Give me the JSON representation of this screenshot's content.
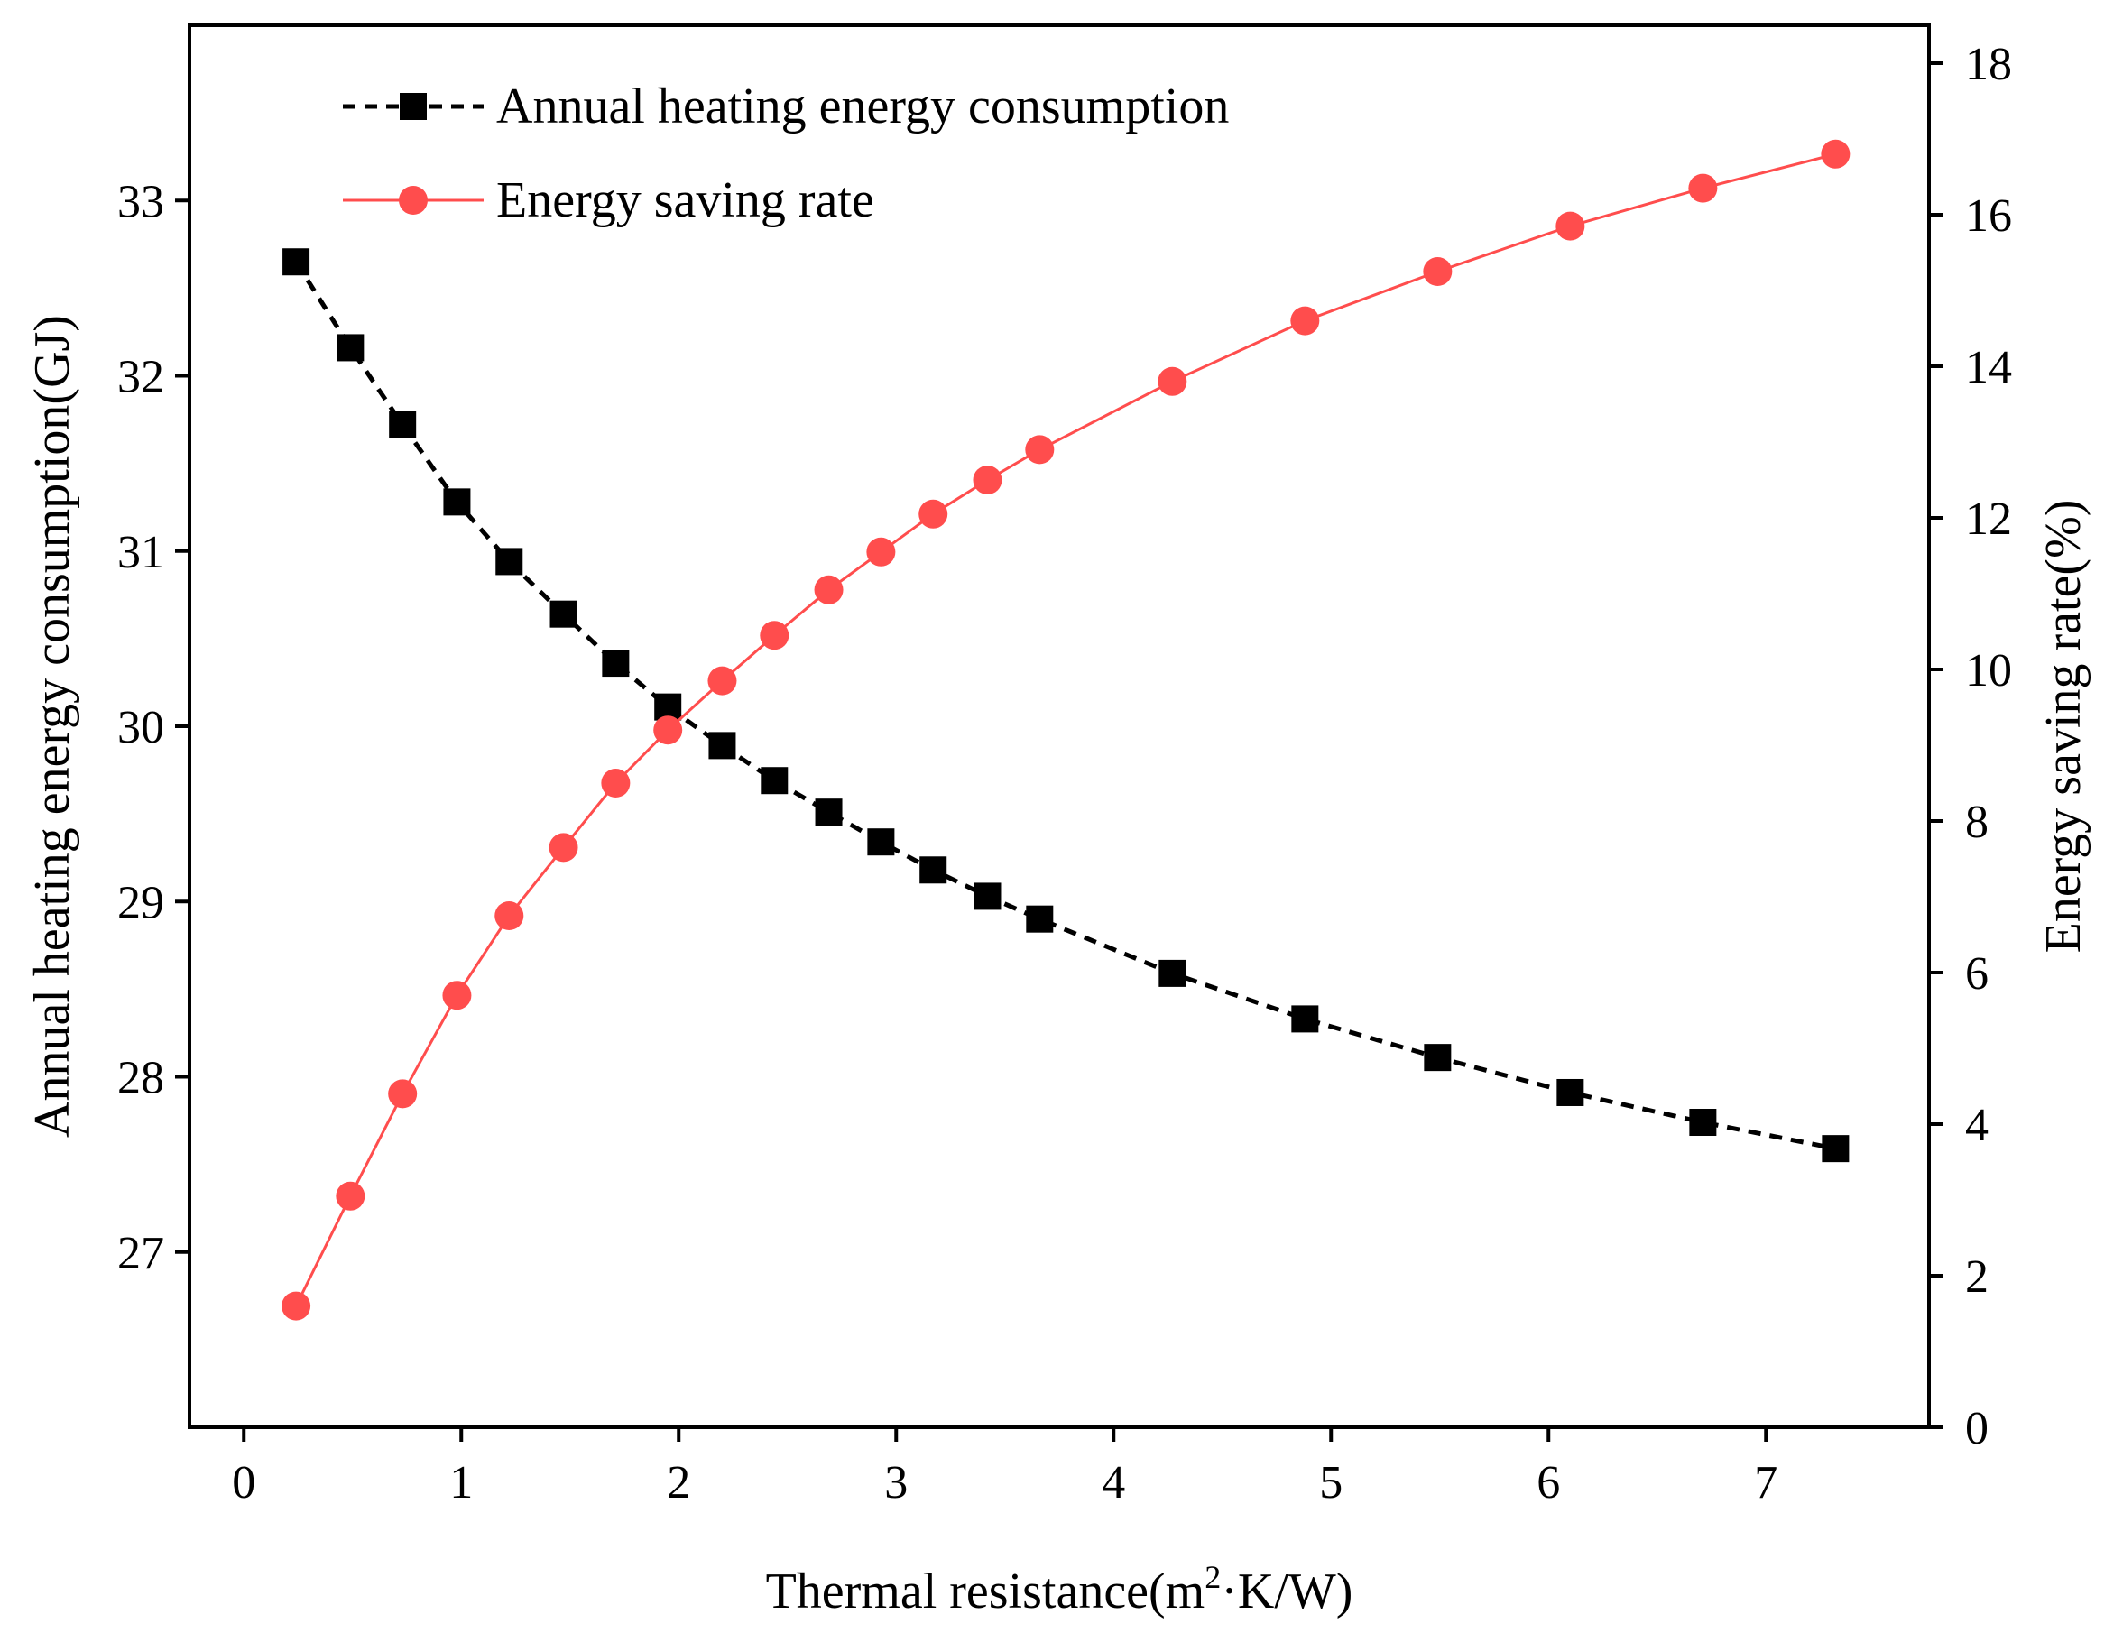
{
  "chart_data": {
    "type": "line",
    "xlabel": "Thermal resistance(m²·K/W)",
    "xlabel_parts": {
      "pre": "Thermal resistance(m",
      "sup": "2",
      "post": "·K/W)"
    },
    "ylabel_left": "Annual heating energy consumption(GJ)",
    "ylabel_right": "Energy saving rate(%)",
    "xlim": [
      -0.25,
      7.75
    ],
    "ylim_left": [
      26.0,
      34.0
    ],
    "ylim_right": [
      0,
      18.5
    ],
    "x_ticks": [
      0,
      1,
      2,
      3,
      4,
      5,
      6,
      7
    ],
    "x_tick_labels": [
      "0",
      "1",
      "2",
      "3",
      "4",
      "5",
      "6",
      "7"
    ],
    "y_left_ticks": [
      27,
      28,
      29,
      30,
      31,
      32,
      33
    ],
    "y_left_tick_labels": [
      "27",
      "28",
      "29",
      "30",
      "31",
      "32",
      "33"
    ],
    "y_right_ticks": [
      0,
      2,
      4,
      6,
      8,
      10,
      12,
      14,
      16,
      18
    ],
    "y_right_tick_labels": [
      "0",
      "2",
      "4",
      "6",
      "8",
      "10",
      "12",
      "14",
      "16",
      "18"
    ],
    "legend_position": "top-left",
    "series": [
      {
        "name": "Annual heating energy consumption",
        "axis": "left",
        "color": "#000000",
        "line_style": "dashed",
        "marker": "square",
        "x": [
          0.24,
          0.49,
          0.73,
          0.98,
          1.22,
          1.47,
          1.71,
          1.95,
          2.2,
          2.44,
          2.69,
          2.93,
          3.17,
          3.42,
          3.66,
          4.27,
          4.88,
          5.49,
          6.1,
          6.71,
          7.32
        ],
        "values": [
          32.65,
          32.16,
          31.72,
          31.28,
          30.94,
          30.64,
          30.36,
          30.11,
          29.89,
          29.69,
          29.51,
          29.34,
          29.18,
          29.03,
          28.9,
          28.59,
          28.33,
          28.11,
          27.91,
          27.74,
          27.59
        ]
      },
      {
        "name": "Energy saving rate",
        "axis": "right",
        "color": "#ff4d4d",
        "line_style": "solid",
        "marker": "circle",
        "x": [
          0.24,
          0.49,
          0.73,
          0.98,
          1.22,
          1.47,
          1.71,
          1.95,
          2.2,
          2.44,
          2.69,
          2.93,
          3.17,
          3.42,
          3.66,
          4.27,
          4.88,
          5.49,
          6.1,
          6.71,
          7.32
        ],
        "values": [
          1.6,
          3.05,
          4.4,
          5.7,
          6.75,
          7.65,
          8.5,
          9.2,
          9.85,
          10.45,
          11.05,
          11.55,
          12.05,
          12.5,
          12.9,
          13.8,
          14.6,
          15.25,
          15.85,
          16.35,
          16.8
        ]
      }
    ]
  }
}
